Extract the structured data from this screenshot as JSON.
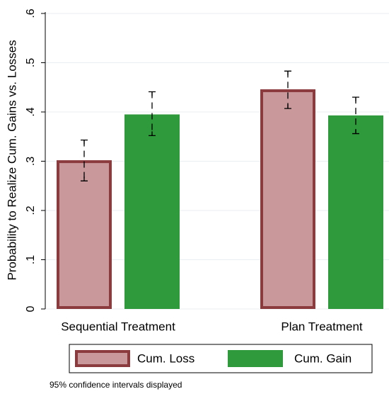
{
  "chart_data": {
    "type": "bar",
    "ylabel": "Probability to Realize Cum. Gains vs. Losses",
    "note": "95% confidence intervals displayed",
    "categories": [
      "Sequential Treatment",
      "Plan Treatment"
    ],
    "series": [
      {
        "name": "Cum. Loss",
        "color": "#c9989b",
        "edgecolor": "#8b3a3e",
        "values": [
          0.302,
          0.446
        ],
        "ci_low": [
          0.26,
          0.407
        ],
        "ci_high": [
          0.343,
          0.483
        ]
      },
      {
        "name": "Cum. Gain",
        "color": "#2e9a3b",
        "edgecolor": "#2e9a3b",
        "values": [
          0.395,
          0.393
        ],
        "ci_low": [
          0.352,
          0.356
        ],
        "ci_high": [
          0.441,
          0.43
        ]
      }
    ],
    "ylim": [
      0,
      0.6
    ],
    "yticks": [
      0,
      {
        "value": 0.1,
        "label": ".1"
      },
      {
        "value": 0.2,
        "label": ".2"
      },
      {
        "value": 0.3,
        "label": ".3"
      },
      {
        "value": 0.4,
        "label": ".4"
      },
      {
        "value": 0.5,
        "label": ".5"
      },
      {
        "value": 0.6,
        "label": ".6"
      }
    ],
    "grid": true
  }
}
